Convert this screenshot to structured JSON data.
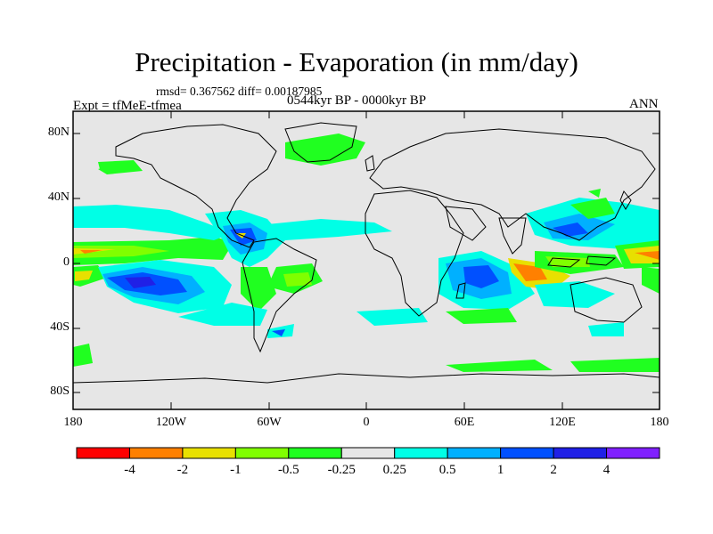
{
  "header": {
    "title": "Precipitation - Evaporation (in mm/day)",
    "stats": "rmsd= 0.367562 diff= 0.00187985",
    "experiment": "Expt = tfMeE-tfmea",
    "period": "0544kyr BP - 0000kyr BP",
    "season": "ANN"
  },
  "map": {
    "lat_ticks": [
      "80N",
      "40N",
      "0",
      "40S",
      "80S"
    ],
    "lon_ticks": [
      "180",
      "120W",
      "60W",
      "0",
      "60E",
      "120E",
      "180"
    ],
    "background_color": "#e6e6e6"
  },
  "colorbar": {
    "labels": [
      "-4",
      "-2",
      "-1",
      "-0.5",
      "-0.25",
      "0.25",
      "0.5",
      "1",
      "2",
      "4"
    ],
    "colors": [
      "#ff0000",
      "#ff8000",
      "#e8e000",
      "#80ff00",
      "#20ff20",
      "#e6e6e6",
      "#00ffe6",
      "#00b0ff",
      "#0050ff",
      "#2020e6",
      "#8020ff"
    ]
  }
}
